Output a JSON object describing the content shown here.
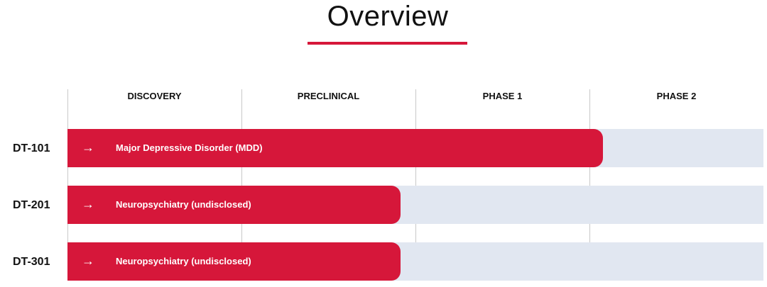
{
  "header": {
    "title": "Overview"
  },
  "columns": [
    "DISCOVERY",
    "PRECLINICAL",
    "PHASE 1",
    "PHASE 2"
  ],
  "rows": [
    {
      "id": "DT-101",
      "indication": "Major Depressive Disorder (MDD)"
    },
    {
      "id": "DT-201",
      "indication": "Neuropsychiatry (undisclosed)"
    },
    {
      "id": "DT-301",
      "indication": "Neuropsychiatry (undisclosed)"
    }
  ]
}
